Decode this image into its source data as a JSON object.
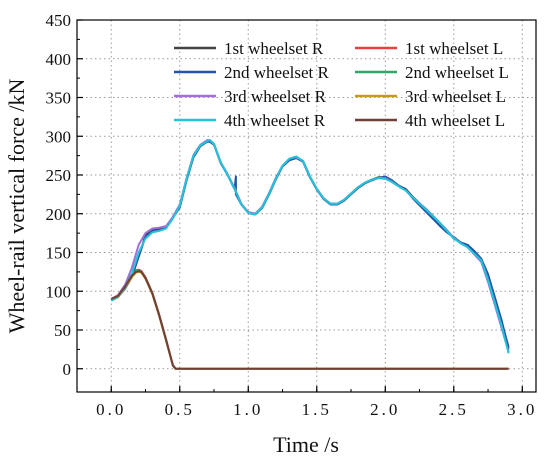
{
  "chart_data": {
    "type": "line",
    "xlabel": "Time /s",
    "ylabel": "Wheel-rail vertical force /kN",
    "xlim": [
      -0.25,
      3.1
    ],
    "ylim": [
      -30,
      450
    ],
    "x_ticks": [
      "0.0",
      "0.5",
      "1.0",
      "1.5",
      "2.0",
      "2.5",
      "3.0"
    ],
    "x_tick_values": [
      0,
      0.5,
      1.0,
      1.5,
      2.0,
      2.5,
      3.0
    ],
    "y_ticks": [
      "0",
      "50",
      "100",
      "150",
      "200",
      "250",
      "300",
      "350",
      "400",
      "450"
    ],
    "y_tick_values": [
      0,
      50,
      100,
      150,
      200,
      250,
      300,
      350,
      400,
      450
    ],
    "grid": true,
    "legend_position": "top-right",
    "series": [
      {
        "name": "1st wheelset R",
        "color": "#444444",
        "points": [
          [
            0,
            90
          ],
          [
            0.05,
            93
          ],
          [
            0.1,
            104
          ],
          [
            0.15,
            118
          ],
          [
            0.2,
            145
          ],
          [
            0.25,
            172
          ],
          [
            0.3,
            180
          ],
          [
            0.35,
            180
          ],
          [
            0.4,
            183
          ],
          [
            0.45,
            195
          ],
          [
            0.5,
            210
          ],
          [
            0.55,
            245
          ],
          [
            0.6,
            275
          ],
          [
            0.65,
            288
          ],
          [
            0.7,
            294
          ],
          [
            0.72,
            294
          ],
          [
            0.75,
            290
          ],
          [
            0.8,
            265
          ],
          [
            0.85,
            250
          ],
          [
            0.9,
            232
          ],
          [
            0.95,
            212
          ],
          [
            1.0,
            202
          ],
          [
            1.05,
            200
          ],
          [
            1.1,
            208
          ],
          [
            1.15,
            225
          ],
          [
            1.2,
            245
          ],
          [
            1.25,
            262
          ],
          [
            1.3,
            270
          ],
          [
            1.35,
            272
          ],
          [
            1.4,
            268
          ],
          [
            1.45,
            248
          ],
          [
            1.5,
            232
          ],
          [
            1.55,
            220
          ],
          [
            1.6,
            213
          ],
          [
            1.65,
            213
          ],
          [
            1.7,
            218
          ],
          [
            1.75,
            226
          ],
          [
            1.8,
            234
          ],
          [
            1.85,
            240
          ],
          [
            1.9,
            244
          ],
          [
            1.95,
            247
          ],
          [
            2.0,
            247
          ],
          [
            2.05,
            242
          ],
          [
            2.1,
            236
          ],
          [
            2.15,
            232
          ],
          [
            2.2,
            222
          ],
          [
            2.3,
            205
          ],
          [
            2.4,
            188
          ],
          [
            2.45,
            178
          ],
          [
            2.5,
            168
          ],
          [
            2.55,
            163
          ],
          [
            2.6,
            158
          ],
          [
            2.7,
            140
          ],
          [
            2.75,
            118
          ],
          [
            2.8,
            88
          ],
          [
            2.85,
            60
          ],
          [
            2.9,
            28
          ]
        ]
      },
      {
        "name": "1st wheelset L",
        "color": "#e8403a",
        "points": [
          [
            0,
            90
          ],
          [
            0.05,
            95
          ],
          [
            0.1,
            108
          ],
          [
            0.15,
            122
          ],
          [
            0.18,
            127
          ],
          [
            0.2,
            128
          ],
          [
            0.22,
            126
          ],
          [
            0.25,
            118
          ],
          [
            0.3,
            98
          ],
          [
            0.35,
            70
          ],
          [
            0.4,
            38
          ],
          [
            0.45,
            5
          ],
          [
            0.47,
            0
          ],
          [
            2.9,
            0
          ]
        ]
      },
      {
        "name": "2nd wheelset R",
        "color": "#2255aa",
        "points": [
          [
            0,
            90
          ],
          [
            0.05,
            93
          ],
          [
            0.1,
            103
          ],
          [
            0.15,
            118
          ],
          [
            0.2,
            145
          ],
          [
            0.25,
            170
          ],
          [
            0.3,
            178
          ],
          [
            0.35,
            178
          ],
          [
            0.4,
            182
          ],
          [
            0.45,
            195
          ],
          [
            0.5,
            208
          ],
          [
            0.55,
            243
          ],
          [
            0.6,
            273
          ],
          [
            0.65,
            287
          ],
          [
            0.7,
            293
          ],
          [
            0.72,
            293
          ],
          [
            0.75,
            289
          ],
          [
            0.8,
            265
          ],
          [
            0.85,
            250
          ],
          [
            0.9,
            232
          ],
          [
            0.91,
            248
          ],
          [
            0.91,
            225
          ],
          [
            0.95,
            212
          ],
          [
            1.0,
            201
          ],
          [
            1.05,
            199
          ],
          [
            1.1,
            207
          ],
          [
            1.15,
            224
          ],
          [
            1.2,
            244
          ],
          [
            1.25,
            261
          ],
          [
            1.3,
            269
          ],
          [
            1.35,
            272
          ],
          [
            1.4,
            267
          ],
          [
            1.45,
            247
          ],
          [
            1.5,
            231
          ],
          [
            1.55,
            219
          ],
          [
            1.6,
            212
          ],
          [
            1.65,
            212
          ],
          [
            1.7,
            217
          ],
          [
            1.75,
            225
          ],
          [
            1.8,
            233
          ],
          [
            1.85,
            239
          ],
          [
            1.9,
            243
          ],
          [
            1.95,
            246
          ],
          [
            2.0,
            248
          ],
          [
            2.05,
            243
          ],
          [
            2.1,
            236
          ],
          [
            2.15,
            231
          ],
          [
            2.2,
            220
          ],
          [
            2.3,
            202
          ],
          [
            2.4,
            184
          ],
          [
            2.45,
            176
          ],
          [
            2.5,
            170
          ],
          [
            2.55,
            163
          ],
          [
            2.6,
            160
          ],
          [
            2.65,
            152
          ],
          [
            2.7,
            142
          ],
          [
            2.75,
            122
          ],
          [
            2.8,
            92
          ],
          [
            2.85,
            62
          ],
          [
            2.9,
            25
          ]
        ]
      },
      {
        "name": "2nd wheelset L",
        "color": "#2ea86a",
        "points": [
          [
            0,
            89
          ],
          [
            0.05,
            94
          ],
          [
            0.1,
            107
          ],
          [
            0.15,
            121
          ],
          [
            0.18,
            126
          ],
          [
            0.2,
            127
          ],
          [
            0.22,
            125
          ],
          [
            0.25,
            117
          ],
          [
            0.3,
            97
          ],
          [
            0.35,
            69
          ],
          [
            0.4,
            37
          ],
          [
            0.45,
            4
          ],
          [
            0.47,
            0
          ],
          [
            2.9,
            0
          ]
        ]
      },
      {
        "name": "3rd wheelset R",
        "color": "#a070d8",
        "points": [
          [
            0,
            88
          ],
          [
            0.05,
            95
          ],
          [
            0.1,
            108
          ],
          [
            0.15,
            130
          ],
          [
            0.2,
            160
          ],
          [
            0.25,
            175
          ],
          [
            0.3,
            181
          ],
          [
            0.35,
            182
          ],
          [
            0.4,
            184
          ],
          [
            0.45,
            196
          ],
          [
            0.5,
            212
          ],
          [
            0.55,
            246
          ],
          [
            0.6,
            276
          ],
          [
            0.65,
            289
          ],
          [
            0.7,
            295
          ],
          [
            0.72,
            295
          ],
          [
            0.75,
            290
          ],
          [
            0.8,
            266
          ],
          [
            0.85,
            251
          ],
          [
            0.9,
            233
          ],
          [
            0.95,
            213
          ],
          [
            1.0,
            202
          ],
          [
            1.05,
            200
          ],
          [
            1.1,
            209
          ],
          [
            1.15,
            226
          ],
          [
            1.2,
            246
          ],
          [
            1.25,
            262
          ],
          [
            1.3,
            271
          ],
          [
            1.35,
            273
          ],
          [
            1.4,
            268
          ],
          [
            1.45,
            248
          ],
          [
            1.5,
            232
          ],
          [
            1.55,
            220
          ],
          [
            1.6,
            213
          ],
          [
            1.65,
            213
          ],
          [
            1.7,
            218
          ],
          [
            1.75,
            226
          ],
          [
            1.8,
            234
          ],
          [
            1.85,
            240
          ],
          [
            1.9,
            244
          ],
          [
            1.95,
            246
          ],
          [
            2.0,
            246
          ],
          [
            2.05,
            241
          ],
          [
            2.1,
            235
          ],
          [
            2.15,
            230
          ],
          [
            2.2,
            221
          ],
          [
            2.3,
            206
          ],
          [
            2.4,
            188
          ],
          [
            2.45,
            179
          ],
          [
            2.5,
            169
          ],
          [
            2.55,
            162
          ],
          [
            2.6,
            157
          ],
          [
            2.7,
            138
          ],
          [
            2.75,
            112
          ],
          [
            2.8,
            82
          ],
          [
            2.85,
            52
          ],
          [
            2.9,
            22
          ]
        ]
      },
      {
        "name": "3rd wheelset L",
        "color": "#c79a1a",
        "points": [
          [
            0,
            88
          ],
          [
            0.05,
            92
          ],
          [
            0.1,
            104
          ],
          [
            0.15,
            118
          ],
          [
            0.18,
            124
          ],
          [
            0.2,
            125
          ],
          [
            0.22,
            124
          ],
          [
            0.25,
            116
          ],
          [
            0.3,
            96
          ],
          [
            0.35,
            68
          ],
          [
            0.4,
            36
          ],
          [
            0.45,
            4
          ],
          [
            0.47,
            0
          ],
          [
            2.9,
            0
          ]
        ]
      },
      {
        "name": "4th wheelset R",
        "color": "#22c4d6",
        "points": [
          [
            0,
            88
          ],
          [
            0.05,
            93
          ],
          [
            0.1,
            105
          ],
          [
            0.15,
            122
          ],
          [
            0.2,
            150
          ],
          [
            0.25,
            168
          ],
          [
            0.3,
            176
          ],
          [
            0.35,
            178
          ],
          [
            0.4,
            181
          ],
          [
            0.45,
            194
          ],
          [
            0.5,
            210
          ],
          [
            0.55,
            245
          ],
          [
            0.6,
            275
          ],
          [
            0.65,
            288
          ],
          [
            0.7,
            294
          ],
          [
            0.72,
            295
          ],
          [
            0.75,
            290
          ],
          [
            0.8,
            266
          ],
          [
            0.85,
            250
          ],
          [
            0.9,
            232
          ],
          [
            0.95,
            212
          ],
          [
            1.0,
            201
          ],
          [
            1.05,
            199
          ],
          [
            1.1,
            208
          ],
          [
            1.15,
            225
          ],
          [
            1.2,
            245
          ],
          [
            1.25,
            262
          ],
          [
            1.3,
            271
          ],
          [
            1.35,
            274
          ],
          [
            1.4,
            268
          ],
          [
            1.45,
            248
          ],
          [
            1.5,
            232
          ],
          [
            1.55,
            220
          ],
          [
            1.6,
            213
          ],
          [
            1.65,
            213
          ],
          [
            1.7,
            218
          ],
          [
            1.75,
            226
          ],
          [
            1.8,
            234
          ],
          [
            1.85,
            240
          ],
          [
            1.9,
            244
          ],
          [
            1.95,
            246
          ],
          [
            2.0,
            245
          ],
          [
            2.05,
            241
          ],
          [
            2.1,
            235
          ],
          [
            2.15,
            230
          ],
          [
            2.2,
            221
          ],
          [
            2.3,
            205
          ],
          [
            2.4,
            188
          ],
          [
            2.45,
            178
          ],
          [
            2.5,
            168
          ],
          [
            2.55,
            162
          ],
          [
            2.6,
            157
          ],
          [
            2.7,
            140
          ],
          [
            2.75,
            115
          ],
          [
            2.8,
            85
          ],
          [
            2.85,
            55
          ],
          [
            2.9,
            20
          ]
        ]
      },
      {
        "name": "4th wheelset L",
        "color": "#6e4038",
        "points": [
          [
            0,
            90
          ],
          [
            0.05,
            94
          ],
          [
            0.1,
            106
          ],
          [
            0.15,
            120
          ],
          [
            0.18,
            125
          ],
          [
            0.2,
            126
          ],
          [
            0.22,
            125
          ],
          [
            0.25,
            117
          ],
          [
            0.3,
            97
          ],
          [
            0.35,
            69
          ],
          [
            0.4,
            37
          ],
          [
            0.45,
            4
          ],
          [
            0.47,
            0
          ],
          [
            2.9,
            0
          ]
        ]
      }
    ]
  }
}
